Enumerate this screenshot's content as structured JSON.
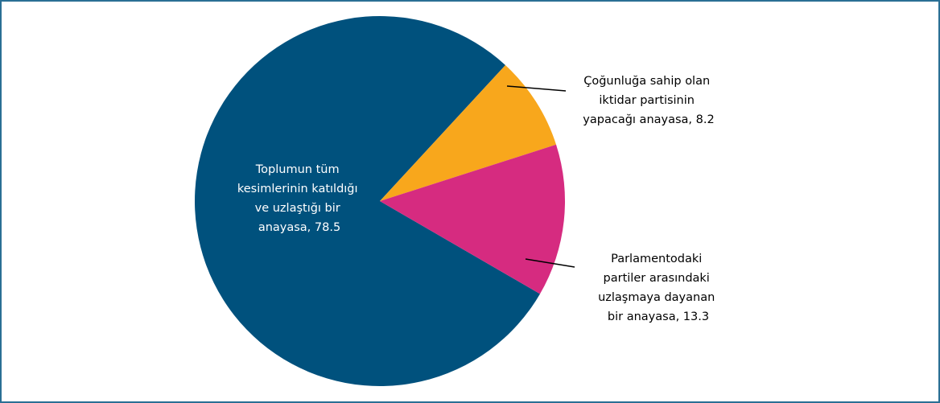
{
  "chart_data": {
    "type": "pie",
    "values": [
      78.5,
      8.2,
      13.3
    ],
    "value_labels": [
      "Toplumun tüm kesimlerinin katıldığı ve uzlaştığı bir anayasa, 78.5",
      "Çoğunluğa sahip olan iktidar partisinin yapacağı anayasa, 8.2",
      "Parlamentodaki partiler arasındaki uzlaşmaya dayanan bir anayasa, 13.3"
    ],
    "colors": [
      "#00517d",
      "#f8a71c",
      "#d62b80"
    ]
  }
}
